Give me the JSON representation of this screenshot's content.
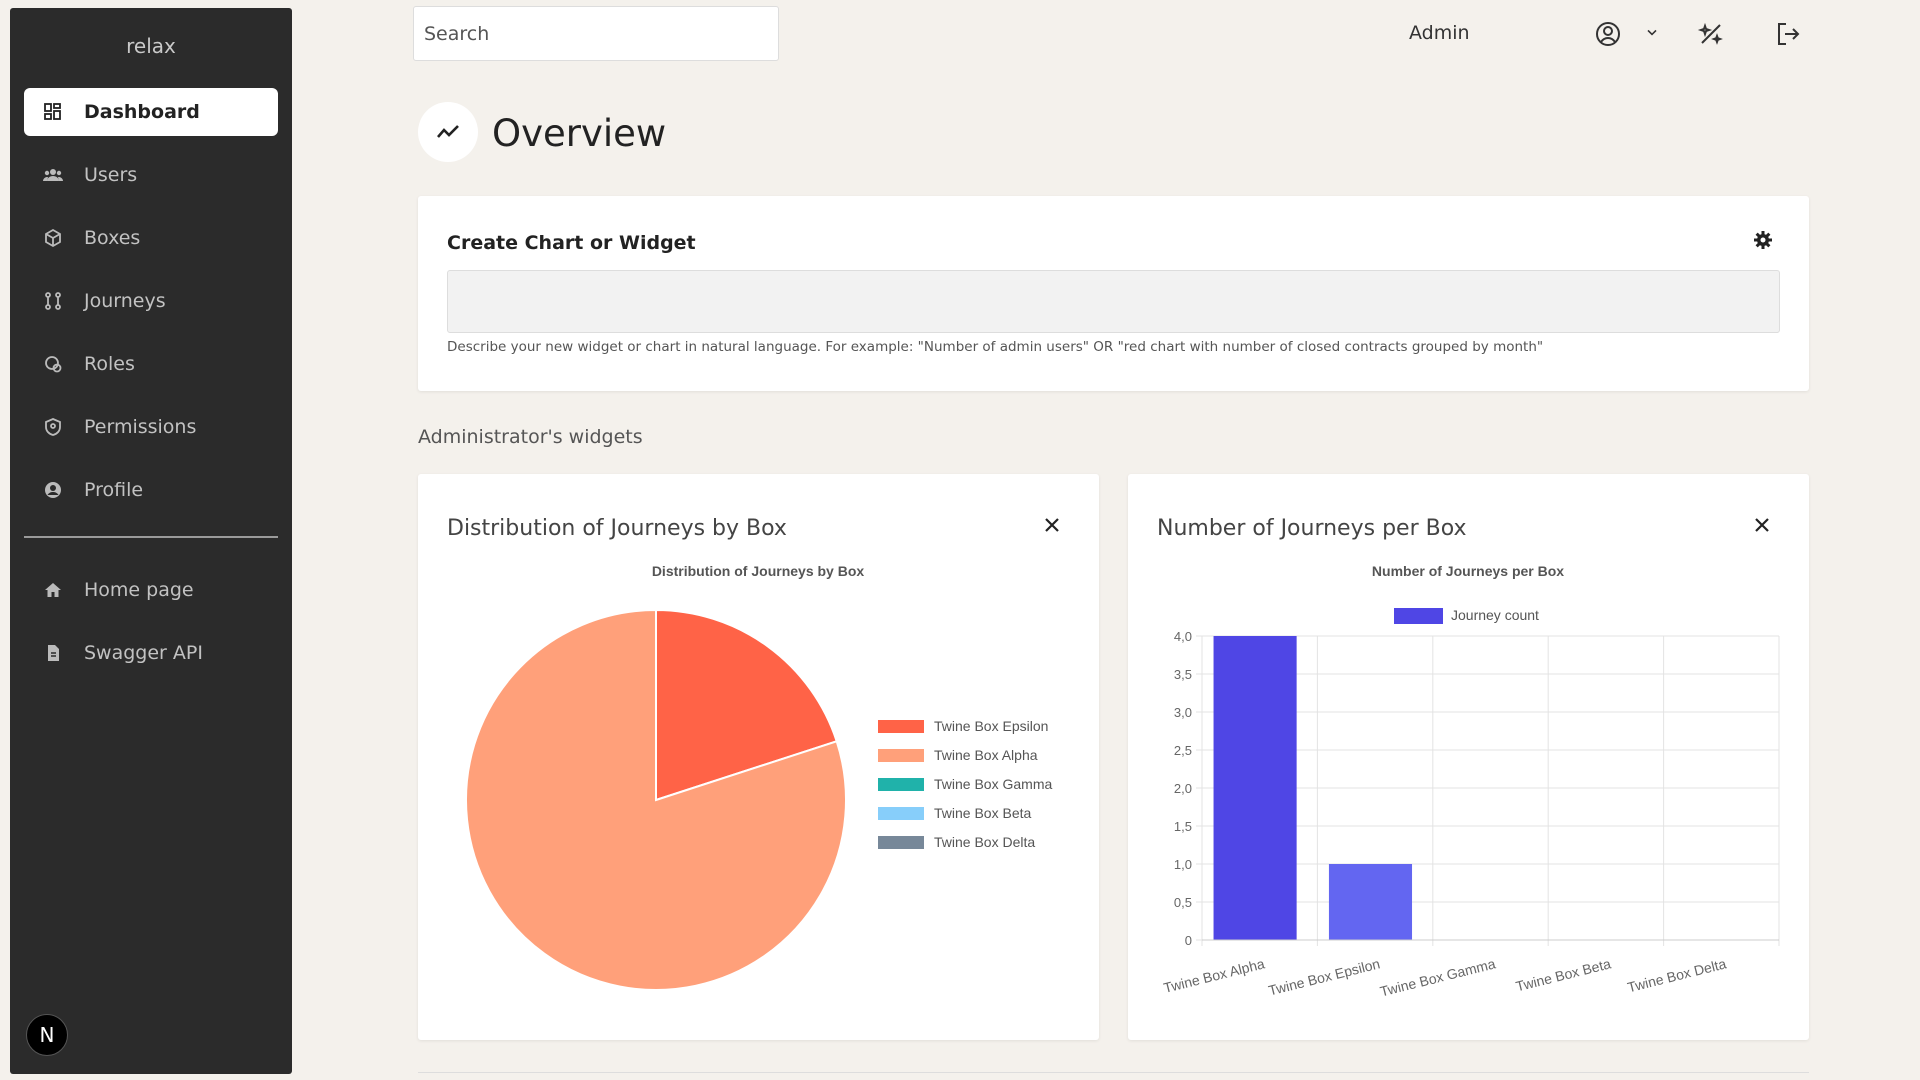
{
  "sidebar": {
    "brand": "relax",
    "items": [
      {
        "label": "Dashboard",
        "icon": "grid-icon"
      },
      {
        "label": "Users",
        "icon": "users-icon"
      },
      {
        "label": "Boxes",
        "icon": "box-icon"
      },
      {
        "label": "Journeys",
        "icon": "journey-icon"
      },
      {
        "label": "Roles",
        "icon": "roles-icon"
      },
      {
        "label": "Permissions",
        "icon": "shield-icon"
      },
      {
        "label": "Profile",
        "icon": "user-circle-icon"
      }
    ],
    "secondary_items": [
      {
        "label": "Home page",
        "icon": "home-icon"
      },
      {
        "label": "Swagger API",
        "icon": "file-icon"
      }
    ],
    "badge": "N"
  },
  "header": {
    "search_placeholder": "Search",
    "user_label": "Admin",
    "icons": [
      "user-circle-icon",
      "chevron-down-icon",
      "magic-wand-icon",
      "logout-icon"
    ]
  },
  "page": {
    "title": "Overview",
    "icon": "trend-icon"
  },
  "create_widget": {
    "title": "Create Chart or Widget",
    "input_value": "",
    "help_text": "Describe your new widget or chart in natural language. For example: \"Number of admin users\" OR \"red chart with number of closed contracts grouped by month\""
  },
  "widgets_section": {
    "label": "Administrator's widgets"
  },
  "widgets": [
    {
      "title": "Distribution of Journeys by Box",
      "chart_data": {
        "type": "pie",
        "title": "Distribution of Journeys by Box",
        "labels": [
          "Twine Box Epsilon",
          "Twine Box Alpha",
          "Twine Box Gamma",
          "Twine Box Beta",
          "Twine Box Delta"
        ],
        "values": [
          1,
          4,
          0,
          0,
          0
        ],
        "colors": [
          "#ff6347",
          "#ffa07a",
          "#20b2aa",
          "#87cefa",
          "#778899"
        ],
        "legend": "right"
      }
    },
    {
      "title": "Number of Journeys per Box",
      "chart_data": {
        "type": "bar",
        "title": "Number of Journeys per Box",
        "categories": [
          "Twine Box Alpha",
          "Twine Box Epsilon",
          "Twine Box Gamma",
          "Twine Box Beta",
          "Twine Box Delta"
        ],
        "series": [
          {
            "name": "Journey count",
            "values": [
              4,
              1,
              0,
              0,
              0
            ],
            "colors": [
              "#4f46e5",
              "#6366f1",
              "#6366f1",
              "#6366f1",
              "#6366f1"
            ]
          }
        ],
        "yticks": [
          "0",
          "0,5",
          "1,0",
          "1,5",
          "2,0",
          "2,5",
          "3,0",
          "3,5",
          "4,0"
        ],
        "ylim": [
          0,
          4
        ],
        "grid": true,
        "legend": "top"
      }
    }
  ]
}
